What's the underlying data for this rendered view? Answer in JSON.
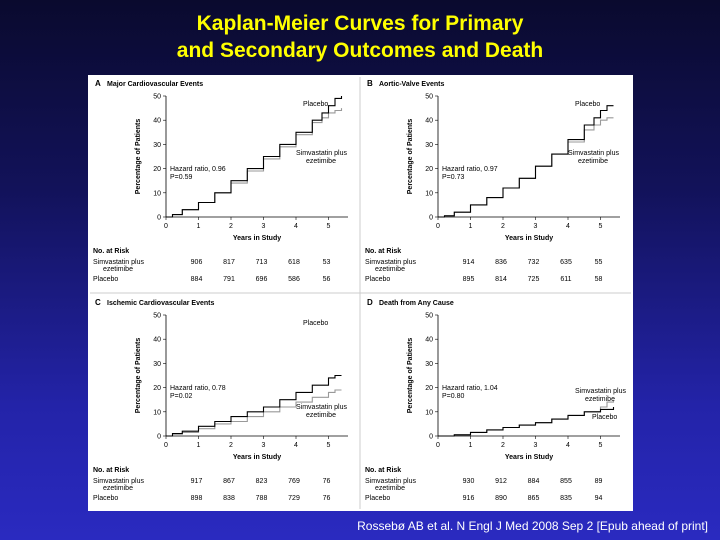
{
  "slide": {
    "title_line1": "Kaplan-Meier Curves for Primary",
    "title_line2": "and Secondary Outcomes and Death",
    "citation": "Rossebø AB et al. N Engl J Med 2008 Sep 2 [Epub ahead of print]"
  },
  "colors": {
    "title": "#ffff00",
    "placebo_curve": "#000000",
    "simvastatin_curve": "#999999"
  },
  "shared_labels": {
    "xlabel": "Years in Study",
    "ylabel": "Percentage of Patients",
    "risk_header": "No. at Risk",
    "risk_row_simva_line1": "Simvastatin plus",
    "risk_row_simva_line2": "ezetimibe",
    "risk_row_placebo": "Placebo"
  },
  "chart_data": [
    {
      "type": "line",
      "panel_letter": "A",
      "title": "Major Cardiovascular Events",
      "xlim": [
        0,
        5.6
      ],
      "ylim": [
        0,
        50
      ],
      "xticks": [
        0,
        1,
        2,
        3,
        4,
        5
      ],
      "yticks": [
        0,
        10,
        20,
        30,
        40,
        50
      ],
      "hazard_ratio": "Hazard ratio, 0.96",
      "p_value": "P=0.59",
      "curve_labels": {
        "placebo": "Placebo",
        "simva_line1": "Simvastatin plus",
        "simva_line2": "ezetimibe"
      },
      "series": [
        {
          "name": "Placebo",
          "x": [
            0,
            0.2,
            0.5,
            1,
            1.5,
            2,
            2.5,
            3,
            3.5,
            4,
            4.5,
            4.8,
            5,
            5.2,
            5.4
          ],
          "y": [
            0,
            1,
            3,
            6,
            10,
            15,
            20,
            25,
            30,
            35,
            40,
            43,
            46,
            49,
            50
          ]
        },
        {
          "name": "Simvastatin plus ezetimibe",
          "x": [
            0,
            0.2,
            0.5,
            1,
            1.5,
            2,
            2.5,
            3,
            3.5,
            4,
            4.5,
            4.8,
            5,
            5.2,
            5.4
          ],
          "y": [
            0,
            1,
            3,
            6,
            10,
            14,
            19,
            24,
            29,
            34,
            39,
            41,
            43,
            44,
            45
          ]
        }
      ],
      "at_risk": {
        "simvastatin": [
          "906",
          "817",
          "713",
          "618",
          "53"
        ],
        "placebo": [
          "884",
          "791",
          "696",
          "586",
          "56"
        ]
      }
    },
    {
      "type": "line",
      "panel_letter": "B",
      "title": "Aortic-Valve Events",
      "xlim": [
        0,
        5.6
      ],
      "ylim": [
        0,
        50
      ],
      "xticks": [
        0,
        1,
        2,
        3,
        4,
        5
      ],
      "yticks": [
        0,
        10,
        20,
        30,
        40,
        50
      ],
      "hazard_ratio": "Hazard ratio, 0.97",
      "p_value": "P=0.73",
      "curve_labels": {
        "placebo": "Placebo",
        "simva_line1": "Simvastatin plus",
        "simva_line2": "ezetimibe"
      },
      "series": [
        {
          "name": "Placebo",
          "x": [
            0,
            0.2,
            0.5,
            1,
            1.5,
            2,
            2.5,
            3,
            3.5,
            4,
            4.5,
            4.8,
            5,
            5.2,
            5.4
          ],
          "y": [
            0,
            0.5,
            2,
            5,
            8,
            12,
            16,
            21,
            26,
            32,
            38,
            41,
            44,
            46,
            46
          ]
        },
        {
          "name": "Simvastatin plus ezetimibe",
          "x": [
            0,
            0.2,
            0.5,
            1,
            1.5,
            2,
            2.5,
            3,
            3.5,
            4,
            4.5,
            4.8,
            5,
            5.2,
            5.4
          ],
          "y": [
            0,
            0.5,
            2,
            5,
            8,
            12,
            16,
            21,
            26,
            31,
            36,
            38,
            40,
            41,
            41
          ]
        }
      ],
      "at_risk": {
        "simvastatin": [
          "914",
          "836",
          "732",
          "635",
          "55"
        ],
        "placebo": [
          "895",
          "814",
          "725",
          "611",
          "58"
        ]
      }
    },
    {
      "type": "line",
      "panel_letter": "C",
      "title": "Ischemic Cardiovascular Events",
      "xlim": [
        0,
        5.6
      ],
      "ylim": [
        0,
        50
      ],
      "xticks": [
        0,
        1,
        2,
        3,
        4,
        5
      ],
      "yticks": [
        0,
        10,
        20,
        30,
        40,
        50
      ],
      "hazard_ratio": "Hazard ratio, 0.78",
      "p_value": "P=0.02",
      "curve_labels": {
        "placebo": "Placebo",
        "simva_line1": "Simvastatin plus",
        "simva_line2": "ezetimibe"
      },
      "series": [
        {
          "name": "Placebo",
          "x": [
            0,
            0.2,
            0.5,
            1,
            1.5,
            2,
            2.5,
            3,
            3.5,
            4,
            4.5,
            5,
            5.2,
            5.4
          ],
          "y": [
            0,
            1,
            2,
            4,
            6,
            8,
            10,
            12,
            15,
            18,
            21,
            24,
            25,
            25
          ]
        },
        {
          "name": "Simvastatin plus ezetimibe",
          "x": [
            0,
            0.2,
            0.5,
            1,
            1.5,
            2,
            2.5,
            3,
            3.5,
            4,
            4.5,
            5,
            5.2,
            5.4
          ],
          "y": [
            0,
            0.8,
            1.5,
            3,
            5,
            6,
            8,
            10,
            12,
            14,
            16,
            18,
            19,
            19
          ]
        }
      ],
      "at_risk": {
        "simvastatin": [
          "917",
          "867",
          "823",
          "769",
          "76"
        ],
        "placebo": [
          "898",
          "838",
          "788",
          "729",
          "76"
        ]
      }
    },
    {
      "type": "line",
      "panel_letter": "D",
      "title": "Death from Any Cause",
      "xlim": [
        0,
        5.6
      ],
      "ylim": [
        0,
        50
      ],
      "xticks": [
        0,
        1,
        2,
        3,
        4,
        5
      ],
      "yticks": [
        0,
        10,
        20,
        30,
        40,
        50
      ],
      "hazard_ratio": "Hazard ratio, 1.04",
      "p_value": "P=0.80",
      "curve_labels": {
        "placebo": "Placebo",
        "simva_line1": "Simvastatin plus",
        "simva_line2": "ezetimibe"
      },
      "series": [
        {
          "name": "Placebo",
          "x": [
            0,
            0.5,
            1,
            1.5,
            2,
            2.5,
            3,
            3.5,
            4,
            4.5,
            5,
            5.4
          ],
          "y": [
            0,
            0.5,
            1.5,
            2.5,
            3.5,
            4.5,
            5.5,
            7,
            8.5,
            10,
            11,
            12
          ]
        },
        {
          "name": "Simvastatin plus ezetimibe",
          "x": [
            0,
            0.5,
            1,
            1.5,
            2,
            2.5,
            3,
            3.5,
            4,
            4.5,
            5,
            5.2,
            5.4
          ],
          "y": [
            0,
            0.5,
            1.5,
            2.5,
            3.5,
            4.5,
            5.5,
            7,
            8.5,
            10,
            12,
            14,
            15
          ]
        }
      ],
      "at_risk": {
        "simvastatin": [
          "930",
          "912",
          "884",
          "855",
          "89"
        ],
        "placebo": [
          "916",
          "890",
          "865",
          "835",
          "94"
        ]
      }
    }
  ]
}
